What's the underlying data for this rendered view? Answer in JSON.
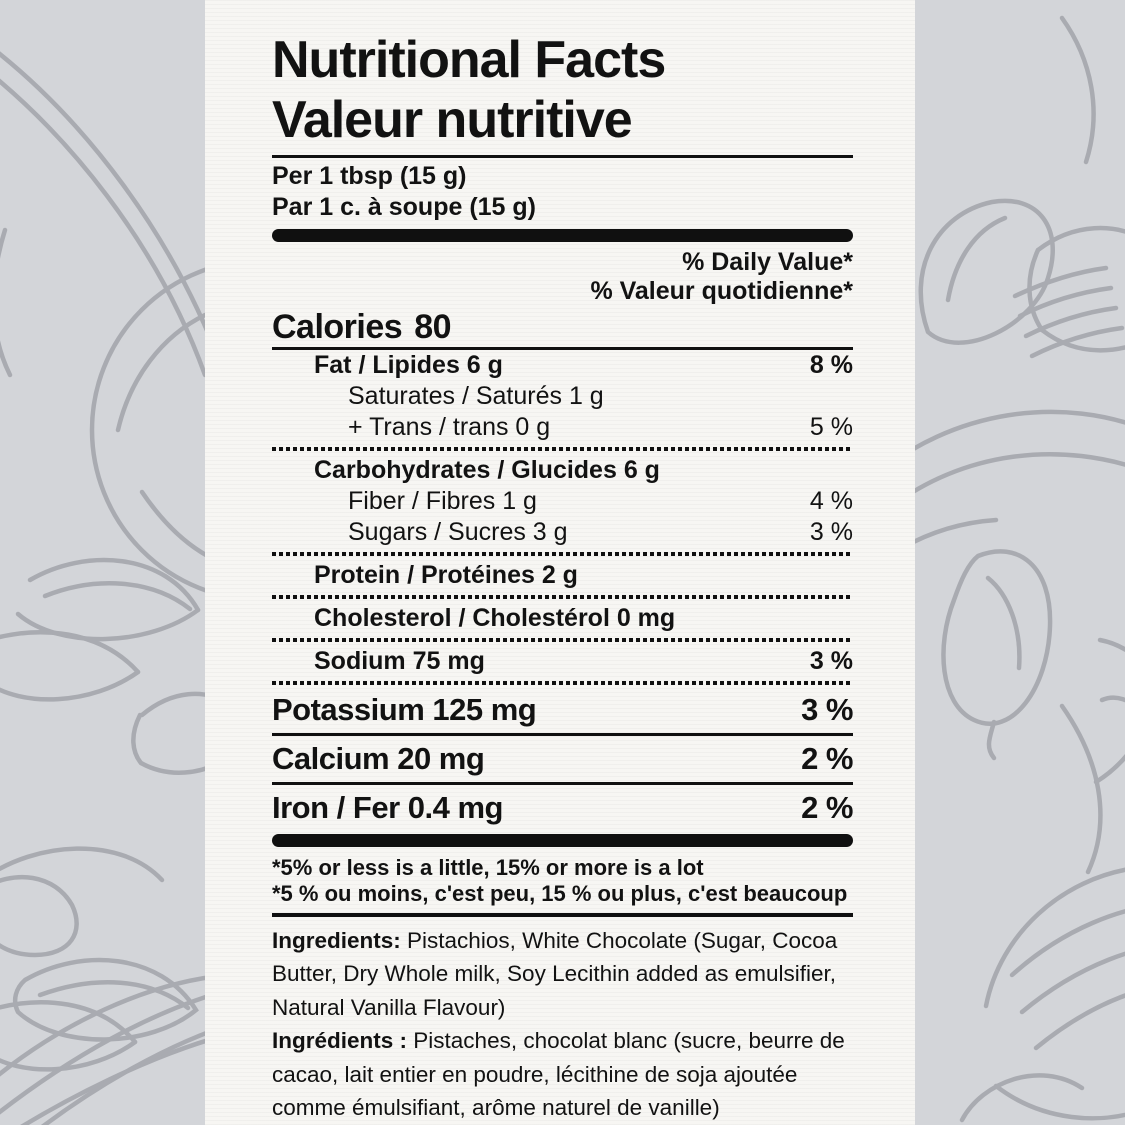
{
  "colors": {
    "background": "#d3d5d9",
    "panel": "#f7f6f3",
    "ink": "#101010",
    "art_line": "#a9abb1"
  },
  "label": {
    "title_en": "Nutritional Facts",
    "title_fr": "Valeur nutritive",
    "serving_en": "Per 1 tbsp (15 g)",
    "serving_fr": "Par 1 c. à soupe (15 g)",
    "daily_value_header_en": "% Daily Value*",
    "daily_value_header_fr": "% Valeur quotidienne*",
    "calories_label": "Calories",
    "calories_value": "80",
    "rows": [
      {
        "name": "Fat / Lipides 6 g",
        "dv": "8 %",
        "indent": 1,
        "bold": true,
        "large": false,
        "rule": "none"
      },
      {
        "name": "Saturates / Saturés 1 g",
        "dv": "",
        "indent": 2,
        "bold": false,
        "large": false,
        "rule": "none"
      },
      {
        "name": "+ Trans / trans 0 g",
        "dv": "5 %",
        "indent": 2,
        "bold": false,
        "large": false,
        "rule": "dotted"
      },
      {
        "name": "Carbohydrates / Glucides 6 g",
        "dv": "",
        "indent": 1,
        "bold": true,
        "large": false,
        "rule": "none"
      },
      {
        "name": "Fiber / Fibres 1 g",
        "dv": "4 %",
        "indent": 2,
        "bold": false,
        "large": false,
        "rule": "none"
      },
      {
        "name": "Sugars / Sucres 3 g",
        "dv": "3 %",
        "indent": 2,
        "bold": false,
        "large": false,
        "rule": "dotted"
      },
      {
        "name": "Protein / Protéines 2 g",
        "dv": "",
        "indent": 1,
        "bold": true,
        "large": false,
        "rule": "dotted"
      },
      {
        "name": "Cholesterol / Cholestérol 0 mg",
        "dv": "",
        "indent": 1,
        "bold": true,
        "large": false,
        "rule": "dotted"
      },
      {
        "name": "Sodium 75 mg",
        "dv": "3 %",
        "indent": 1,
        "bold": true,
        "large": false,
        "rule": "dotted"
      },
      {
        "name": "Potassium 125 mg",
        "dv": "3 %",
        "indent": 0,
        "bold": true,
        "large": true,
        "rule": "solid"
      },
      {
        "name": "Calcium 20 mg",
        "dv": "2 %",
        "indent": 0,
        "bold": true,
        "large": true,
        "rule": "solid"
      },
      {
        "name": "Iron / Fer 0.4 mg",
        "dv": "2 %",
        "indent": 0,
        "bold": true,
        "large": true,
        "rule": "bar"
      }
    ],
    "footnote_en": "*5% or less is a little, 15% or more is a lot",
    "footnote_fr": "*5 % ou moins, c'est peu, 15 % ou plus, c'est beaucoup",
    "ingredients_en": {
      "label": "Ingredients:",
      "text": "Pistachios, White Chocolate (Sugar, Cocoa Butter, Dry Whole milk, Soy Lecithin added as emulsifier, Natural Vanilla Flavour)"
    },
    "ingredients_fr": {
      "label": "Ingrédients :",
      "text": "Pistaches, chocolat blanc (sucre, beurre de cacao, lait entier en poudre, lécithine de soja ajoutée comme émulsifiant, arôme naturel de vanille)"
    }
  }
}
